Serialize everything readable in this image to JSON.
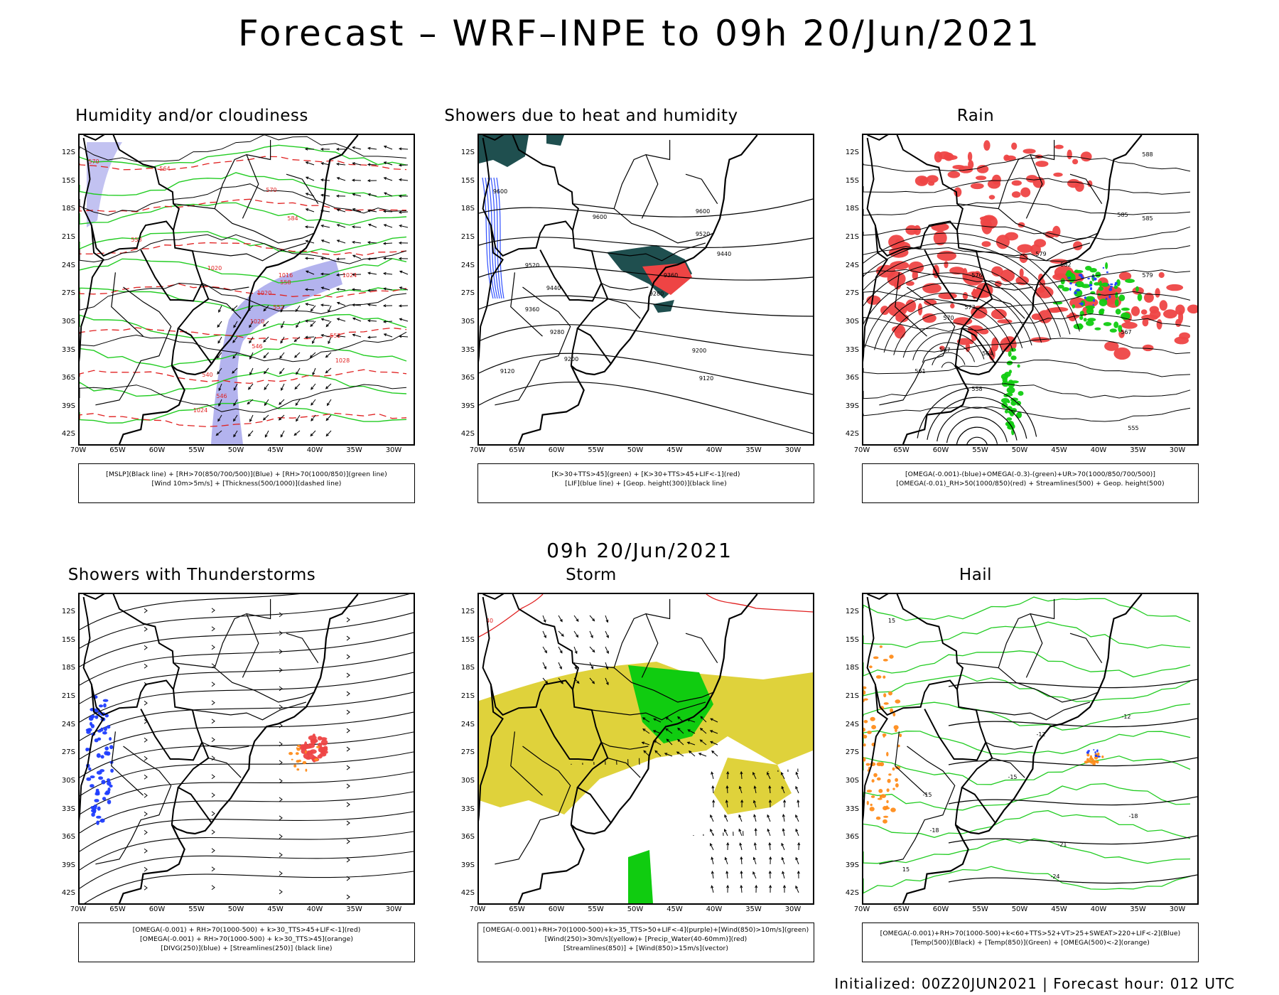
{
  "title": "Forecast – WRF–INPE to 09h 20/Jun/2021",
  "mid_title": "09h 20/Jun/2021",
  "footer": "Initialized: 00Z20JUN2021 | Forecast hour: 012 UTC",
  "lat_labels": [
    "12S",
    "15S",
    "18S",
    "21S",
    "24S",
    "27S",
    "30S",
    "33S",
    "36S",
    "39S",
    "42S"
  ],
  "lon_labels": [
    "70W",
    "65W",
    "60W",
    "55W",
    "50W",
    "45W",
    "40W",
    "35W",
    "30W"
  ],
  "panels": [
    {
      "title": "Humidity and/or cloudiness",
      "caption": [
        "[MSLP](Black line) + [RH>70(850/700/500)](Blue) + [RH>70(1000/850)](green line)",
        "[Wind 10m>5m/s] + [Thickness(500/1000)](dashed line)"
      ],
      "contour_labels": [
        "1020",
        "1020",
        "1016",
        "1020",
        "1024",
        "1028",
        "1024",
        "570",
        "564",
        "558",
        "552",
        "546",
        "540",
        "546",
        "552",
        "558",
        "584",
        "570"
      ]
    },
    {
      "title": "Showers due to heat and humidity",
      "caption": [
        "[K>30+TTS>45](green) + [K>30+TTS>45+LIF<-1](red)",
        "[LIF](blue line) + [Geop. height(300)](black line)"
      ],
      "contour_labels": [
        "9600",
        "9600",
        "9600",
        "9520",
        "9520",
        "9440",
        "9440",
        "9360",
        "9360",
        "9280",
        "9280",
        "9200",
        "9200",
        "9120",
        "9120"
      ]
    },
    {
      "title": "Rain",
      "caption": [
        "[OMEGA(-0.001)-(blue)+OMEGA(-0.3)-(green)+UR>70(1000/850/700/500)]",
        "[OMEGA(-0.01)_RH>50(1000/850)(red) + Streamlines(500) + Geop. height(500)"
      ],
      "contour_labels": [
        "588",
        "585",
        "582",
        "579",
        "576",
        "573",
        "570",
        "567",
        "564",
        "561",
        "558",
        "555",
        "585",
        "579",
        "567"
      ]
    },
    {
      "title": "Showers with Thunderstorms",
      "caption": [
        "[OMEGA(-0.001) + RH>70(1000-500) + k>30_TTS>45+LIF<-1](red)",
        "[OMEGA(-0.001) + RH>70(1000-500) + k>30_TTS>45](orange)",
        "[DIVG(250)](blue) + [Streamlines(250)] (black line)"
      ],
      "contour_labels": []
    },
    {
      "title": "Storm",
      "caption": [
        "[OMEGA(-0.001)+RH>70(1000-500)+k>35_TTS>50+LIF<-4](purple)+[Wind(850)>10m/s](green)",
        "[Wind(250)>30m/s](yellow)+ [Precip_Water(40-60mm)](red)",
        "[Streamlines(850)] + [Wind(850)>15m/s](vector)"
      ],
      "contour_labels": [
        "40"
      ]
    },
    {
      "title": "Hail",
      "caption": [
        "[OMEGA(-0.001)+RH>70(1000-500)+k<60+TTS>52+VT>25+SWEAT>220+LIF<-2](Blue)",
        "[Temp(500)](Black) + [Temp(850)](Green) + [OMEGA(500)<-2](orange)"
      ],
      "contour_labels": [
        "-12",
        "-12",
        "-15",
        "-15",
        "-18",
        "-18",
        "-21",
        "-24",
        "15",
        "15"
      ]
    }
  ],
  "colors": {
    "blue_fill": "#9a9ae8",
    "green_line": "#22cc22",
    "red_fill": "#ee4444",
    "dark_teal": "#1f4f4f",
    "yellow_fill": "#ddd030",
    "green_fill": "#10cc10",
    "orange": "#ff8c1a",
    "blue_dots": "#1e3cff"
  }
}
